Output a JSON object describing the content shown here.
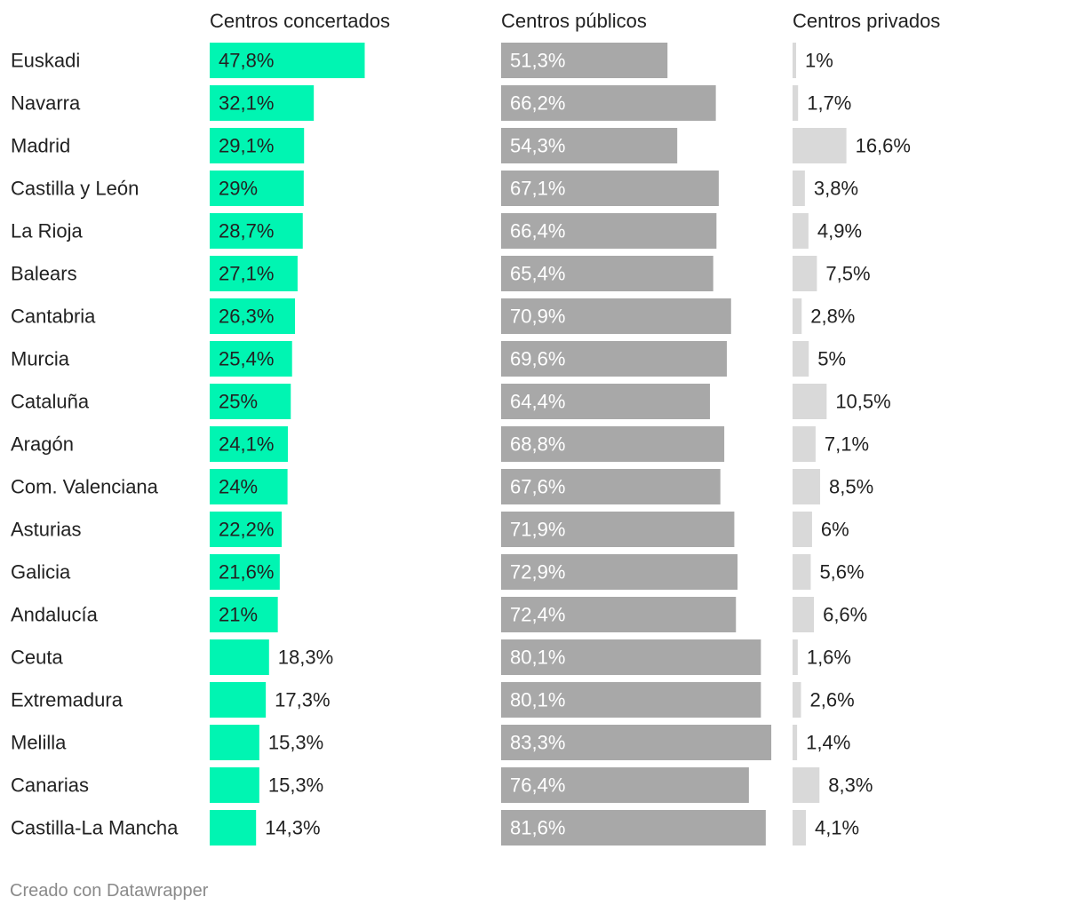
{
  "chart_data": {
    "type": "bar",
    "unit": "%",
    "categories": [
      "Euskadi",
      "Navarra",
      "Madrid",
      "Castilla y León",
      "La Rioja",
      "Balears",
      "Cantabria",
      "Murcia",
      "Cataluña",
      "Aragón",
      "Com. Valenciana",
      "Asturias",
      "Galicia",
      "Andalucía",
      "Ceuta",
      "Extremadura",
      "Melilla",
      "Canarias",
      "Castilla-La Mancha"
    ],
    "series": [
      {
        "name": "Centros concertados",
        "color": "#00f5b2",
        "values": [
          47.8,
          32.1,
          29.1,
          29,
          28.7,
          27.1,
          26.3,
          25.4,
          25,
          24.1,
          24,
          22.2,
          21.6,
          21,
          18.3,
          17.3,
          15.3,
          15.3,
          14.3
        ],
        "labels": [
          "47,8%",
          "32,1%",
          "29,1%",
          "29%",
          "28,7%",
          "27,1%",
          "26,3%",
          "25,4%",
          "25%",
          "24,1%",
          "24%",
          "22,2%",
          "21,6%",
          "21%",
          "18,3%",
          "17,3%",
          "15,3%",
          "15,3%",
          "14,3%"
        ]
      },
      {
        "name": "Centros públicos",
        "color": "#a8a8a8",
        "values": [
          51.3,
          66.2,
          54.3,
          67.1,
          66.4,
          65.4,
          70.9,
          69.6,
          64.4,
          68.8,
          67.6,
          71.9,
          72.9,
          72.4,
          80.1,
          80.1,
          83.3,
          76.4,
          81.6
        ],
        "labels": [
          "51,3%",
          "66,2%",
          "54,3%",
          "67,1%",
          "66,4%",
          "65,4%",
          "70,9%",
          "69,6%",
          "64,4%",
          "68,8%",
          "67,6%",
          "71,9%",
          "72,9%",
          "72,4%",
          "80,1%",
          "80,1%",
          "83,3%",
          "76,4%",
          "81,6%"
        ]
      },
      {
        "name": "Centros privados",
        "color": "#d9d9d9",
        "values": [
          1,
          1.7,
          16.6,
          3.8,
          4.9,
          7.5,
          2.8,
          5,
          10.5,
          7.1,
          8.5,
          6,
          5.6,
          6.6,
          1.6,
          2.6,
          1.4,
          8.3,
          4.1
        ],
        "labels": [
          "1%",
          "1,7%",
          "16,6%",
          "3,8%",
          "4,9%",
          "7,5%",
          "2,8%",
          "5%",
          "10,5%",
          "7,1%",
          "8,5%",
          "6%",
          "5,6%",
          "6,6%",
          "1,6%",
          "2,6%",
          "1,4%",
          "8,3%",
          "4,1%"
        ]
      }
    ],
    "xlim": [
      0,
      100
    ]
  },
  "footer": "Creado con Datawrapper"
}
